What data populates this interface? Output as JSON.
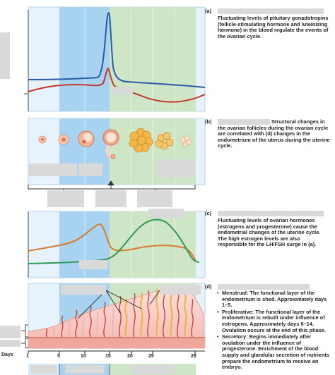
{
  "panel_a": {
    "tag": "(a)",
    "text": "Fluctuating levels of pituitary gonadotropins (follicle-stimulating hormone and luteinizing hormone) in the blood regulate the events of the ovarian cycle.",
    "colors": {
      "fsh": "#2a5aa8",
      "lh": "#c0392b"
    }
  },
  "panel_b": {
    "tag": "(b)",
    "text": "Structural changes in the ovarian follicles during the ovarian cycle are correlated with (d) changes in the endometrium of the uterus during the uterine cycle."
  },
  "panel_c": {
    "tag": "(c)",
    "text": "Fluctuating levels of ovarian hormones (estrogens and progesterone) cause the endometrial changes of the uterine cycle. The high estrogen levels are also responsible for the LH/FSH surge in (a).",
    "colors": {
      "estrogen": "#d97a2b",
      "progesterone": "#2e9a55"
    }
  },
  "panel_d": {
    "tag": "(d)",
    "items": [
      "Menstrual: The functional layer of the endometrium is shed. Approximately days 1–5.",
      "Proliferative: The functional layer of the endometrium is rebuilt under influence of estrogens. Approximately days 6–14. Ovulation occurs at the end of this phase.",
      "Secretory: Begins immediately after ovulation under the influence of progesterone. Enrichment of the blood supply and glandular secretion of nutrients prepare the endometrium to receive an embryo."
    ]
  },
  "days_axis": {
    "label": "Days",
    "ticks": [
      "1",
      "5",
      "10",
      "15",
      "20",
      "25",
      "28"
    ]
  },
  "phase_colors": {
    "menstrual": "#d6ebf9",
    "proliferative": "#a7d2f0",
    "secretory": "#cfe6c6"
  }
}
